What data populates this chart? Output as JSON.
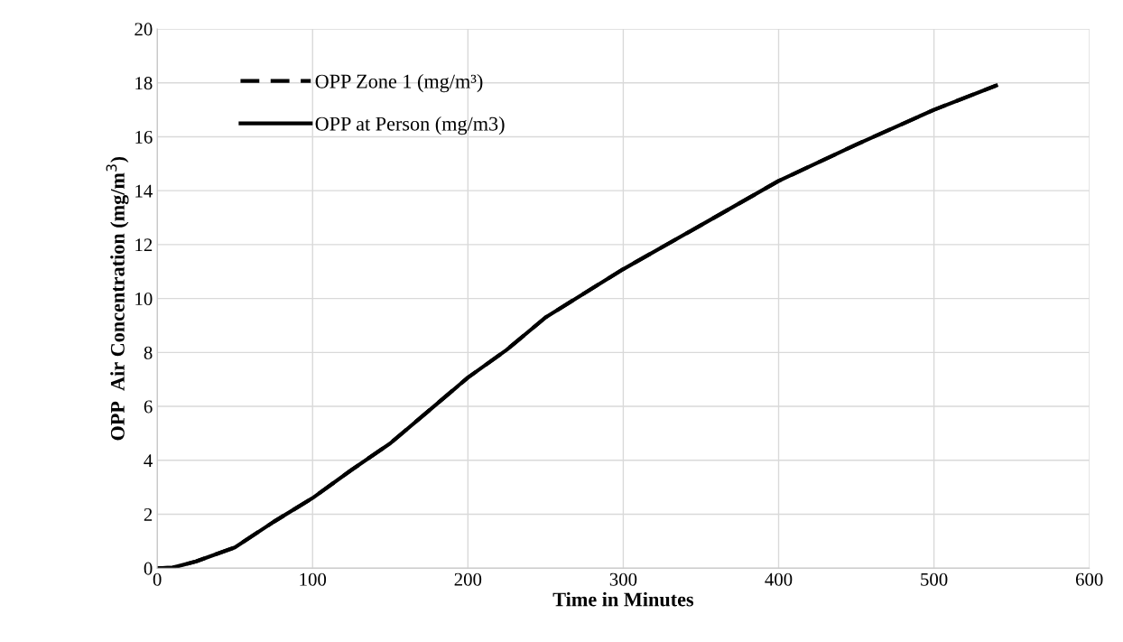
{
  "chart_data": {
    "type": "line",
    "xlabel": "Time in Minutes",
    "ylabel": "OPP  Air Concentration (mg/m$^{3}$)",
    "x": [
      0,
      10,
      25,
      50,
      75,
      100,
      125,
      150,
      175,
      200,
      225,
      250,
      275,
      300,
      350,
      400,
      450,
      500,
      540
    ],
    "series": [
      {
        "name": "OPP Zone 1 (mg/m³)",
        "color": "#000000",
        "line_style": "dashed",
        "values": [
          0,
          0.02,
          0.25,
          0.77,
          1.72,
          2.6,
          3.64,
          4.63,
          5.85,
          7.07,
          8.1,
          9.3,
          10.2,
          11.09,
          12.72,
          14.36,
          15.71,
          17.0,
          17.9
        ]
      },
      {
        "name": "OPP at Person (mg/m3)",
        "color": "#000000",
        "line_style": "solid",
        "values": [
          0,
          0.02,
          0.25,
          0.77,
          1.72,
          2.6,
          3.64,
          4.63,
          5.85,
          7.07,
          8.1,
          9.3,
          10.2,
          11.09,
          12.72,
          14.36,
          15.71,
          17.0,
          17.9
        ]
      }
    ],
    "xlim": [
      0,
      600
    ],
    "xticks": [
      0,
      100,
      200,
      300,
      400,
      500,
      600
    ],
    "ylim": [
      0,
      20
    ],
    "yticks": [
      0,
      2,
      4,
      6,
      8,
      10,
      12,
      14,
      16,
      18,
      20
    ],
    "grid": true,
    "legend": "top left",
    "marker": "none"
  }
}
